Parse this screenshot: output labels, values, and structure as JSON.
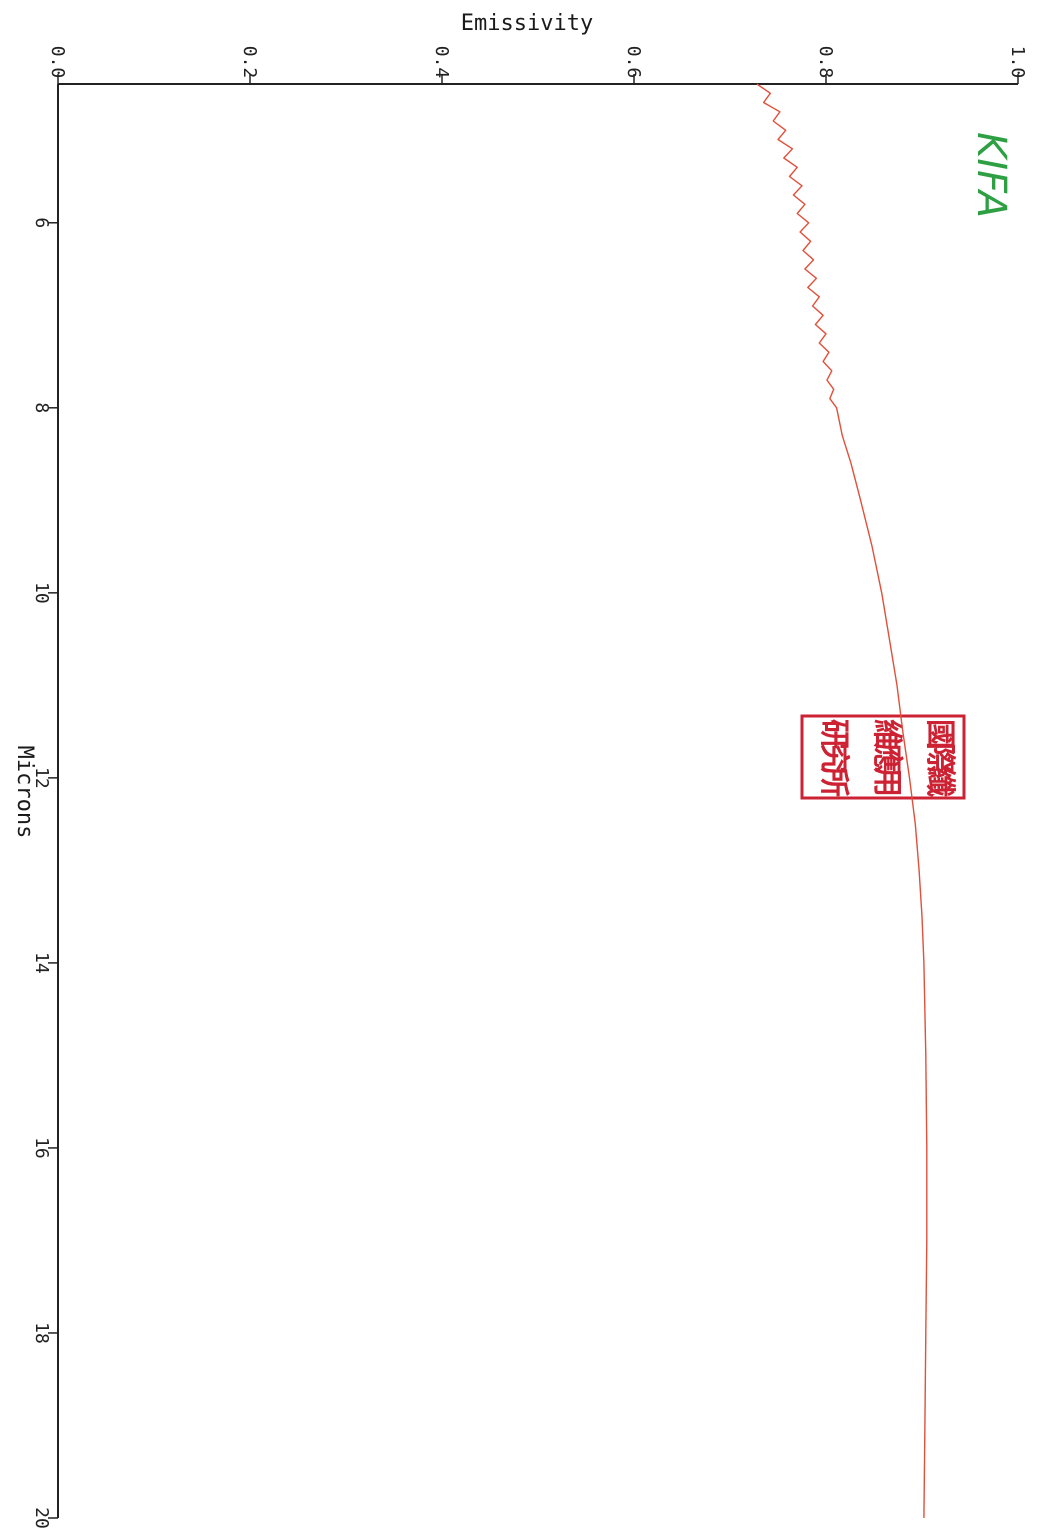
{
  "chart_data": {
    "type": "line",
    "orientation": "rotated-90-clockwise",
    "title": "",
    "xlabel": "Microns",
    "ylabel": "Emissivity",
    "xlim": [
      4.5,
      20
    ],
    "ylim": [
      0.0,
      1.0
    ],
    "x_ticks": [
      6,
      8,
      10,
      12,
      14,
      16,
      18,
      20
    ],
    "x_tick_labels": [
      "6",
      "8",
      "10",
      "12",
      "14",
      "16",
      "18",
      "20"
    ],
    "y_ticks": [
      0.0,
      0.2,
      0.4,
      0.6,
      0.8,
      1.0
    ],
    "y_tick_labels": [
      "0.0",
      "0.2",
      "0.4",
      "0.6",
      "0.8",
      "1.0"
    ],
    "grid": false,
    "legend": "none",
    "series": [
      {
        "color": "#e0503a",
        "x": [
          4.5,
          4.6,
          4.7,
          4.8,
          4.9,
          5.0,
          5.1,
          5.2,
          5.3,
          5.4,
          5.5,
          5.6,
          5.7,
          5.8,
          5.9,
          6.0,
          6.1,
          6.2,
          6.3,
          6.4,
          6.5,
          6.6,
          6.7,
          6.8,
          6.9,
          7.0,
          7.1,
          7.2,
          7.3,
          7.4,
          7.5,
          7.6,
          7.7,
          7.8,
          7.9,
          8.0,
          8.3,
          8.6,
          9.0,
          9.5,
          10.0,
          10.5,
          11.0,
          11.5,
          12.0,
          12.5,
          13.0,
          13.5,
          14.0,
          15.0,
          16.0,
          17.0,
          18.0,
          19.0,
          20.0
        ],
        "y": [
          0.728,
          0.742,
          0.735,
          0.752,
          0.745,
          0.758,
          0.75,
          0.765,
          0.756,
          0.77,
          0.762,
          0.775,
          0.766,
          0.778,
          0.77,
          0.782,
          0.773,
          0.784,
          0.776,
          0.787,
          0.778,
          0.79,
          0.781,
          0.793,
          0.786,
          0.797,
          0.789,
          0.8,
          0.793,
          0.803,
          0.797,
          0.806,
          0.801,
          0.808,
          0.804,
          0.811,
          0.817,
          0.826,
          0.836,
          0.848,
          0.858,
          0.866,
          0.874,
          0.88,
          0.887,
          0.893,
          0.897,
          0.9,
          0.902,
          0.904,
          0.905,
          0.905,
          0.904,
          0.903,
          0.902
        ]
      }
    ]
  },
  "annotations": {
    "brand": "KIFA",
    "brand_color": "#2ea043",
    "stamp_color": "#cc2233",
    "stamp_text": "國際纖維應用研究所"
  }
}
